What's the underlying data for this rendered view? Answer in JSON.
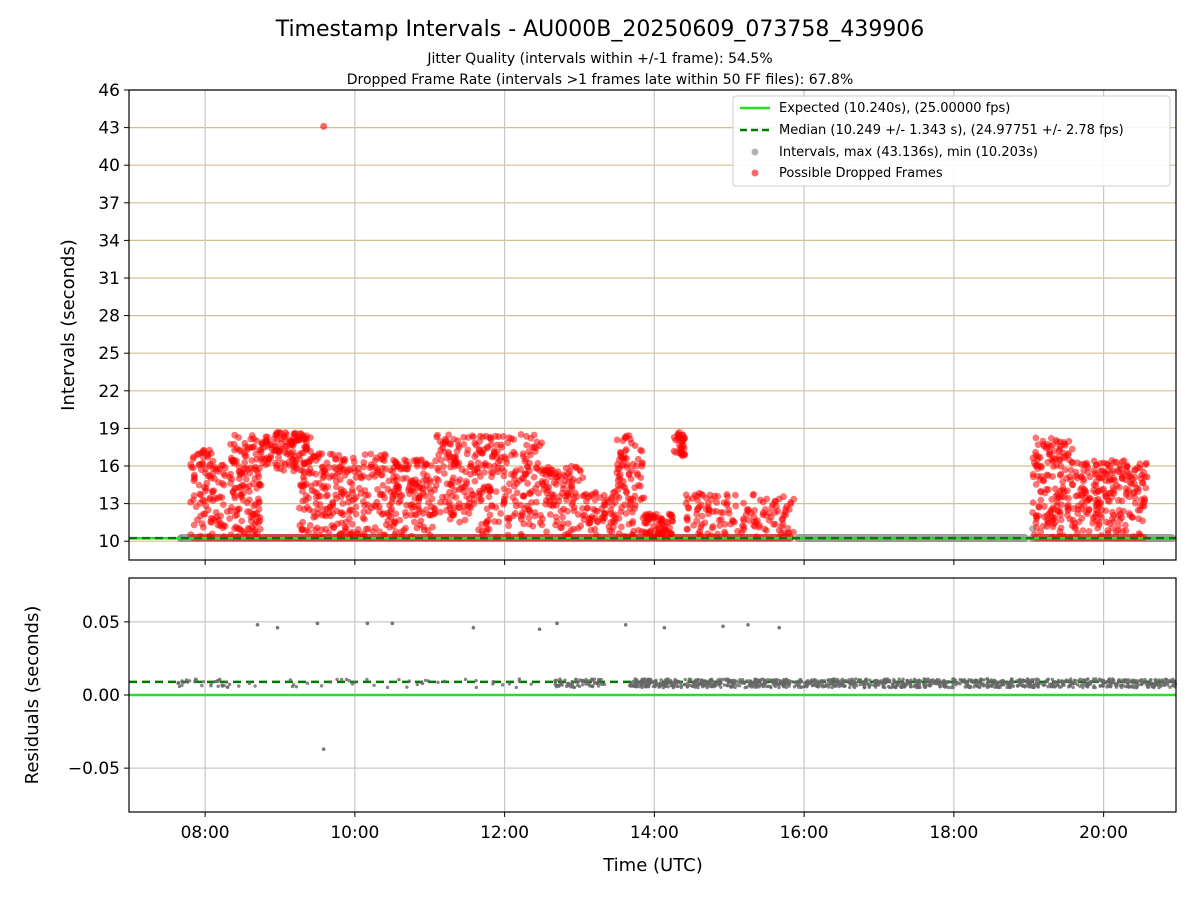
{
  "figure": {
    "title": "Timestamp Intervals - AU000B_20250609_073758_439906",
    "subtitle_1": "Jitter Quality (intervals within +/-1 frame): 54.5%",
    "subtitle_2": "Dropped Frame Rate (intervals >1 frames late within 50 FF files): 67.8%"
  },
  "chart_data": [
    {
      "type": "scatter",
      "panel": "intervals",
      "ylabel": "Intervals (seconds)",
      "xlabel": "",
      "xlim": [
        "06:59",
        "20:58"
      ],
      "ylim": [
        8.5,
        46
      ],
      "x_ticks": [
        "08:00",
        "10:00",
        "12:00",
        "14:00",
        "16:00",
        "18:00",
        "20:00"
      ],
      "y_ticks": [
        "10",
        "13",
        "16",
        "19",
        "22",
        "25",
        "28",
        "31",
        "34",
        "37",
        "40",
        "43",
        "46"
      ],
      "grid": "horizontal gold lines at y ticks, vertical gray lines at x ticks",
      "legend_position": "top-right",
      "expected_line": {
        "value": 10.24,
        "color": "#22e022",
        "legend": "Expected (10.240s), (25.00000 fps)"
      },
      "median_line": {
        "value": 10.249,
        "color": "#007a00",
        "style": "dashed",
        "legend": "Median (10.249 +/- 1.343 s), (24.97751 +/- 2.78 fps)"
      },
      "series": [
        {
          "legend": "Intervals, max (43.136s), min (10.203s)",
          "color": "#808080",
          "max": 43.136,
          "min": 10.203,
          "baseline_spans": [
            [
              "07:38",
              "15:52"
            ],
            [
              "15:52",
              "19:00"
            ],
            [
              "19:00",
              "20:58"
            ]
          ],
          "points": [
            [
              "19:03",
              11.0
            ],
            [
              "07:40",
              10.22
            ],
            [
              "15:40",
              10.3
            ]
          ]
        },
        {
          "legend": "Possible Dropped Frames",
          "color": "#ff0000",
          "points": [
            [
              "09:35",
              43.1
            ]
          ],
          "clusters": [
            {
              "start": "07:48",
              "end": "08:15",
              "low": 10.3,
              "high": 17.5,
              "count": 100
            },
            {
              "start": "08:15",
              "end": "08:45",
              "low": 10.3,
              "high": 18.5,
              "count": 140
            },
            {
              "start": "08:45",
              "end": "09:25",
              "low": 15.5,
              "high": 18.7,
              "count": 130
            },
            {
              "start": "09:15",
              "end": "10:25",
              "low": 10.3,
              "high": 17.0,
              "count": 240
            },
            {
              "start": "10:25",
              "end": "11:05",
              "low": 10.3,
              "high": 16.5,
              "count": 150
            },
            {
              "start": "11:05",
              "end": "11:35",
              "low": 11.5,
              "high": 18.5,
              "count": 110
            },
            {
              "start": "11:35",
              "end": "12:30",
              "low": 10.3,
              "high": 18.6,
              "count": 200
            },
            {
              "start": "12:30",
              "end": "13:05",
              "low": 10.3,
              "high": 16.0,
              "count": 110
            },
            {
              "start": "13:05",
              "end": "13:30",
              "low": 10.3,
              "high": 14.0,
              "count": 60
            },
            {
              "start": "13:30",
              "end": "13:52",
              "low": 10.3,
              "high": 18.5,
              "count": 90
            },
            {
              "start": "13:52",
              "end": "14:15",
              "low": 10.3,
              "high": 12.2,
              "count": 70
            },
            {
              "start": "14:15",
              "end": "14:25",
              "low": 16.8,
              "high": 18.8,
              "count": 35
            },
            {
              "start": "14:25",
              "end": "14:40",
              "low": 10.3,
              "high": 14.0,
              "count": 30
            },
            {
              "start": "14:40",
              "end": "15:52",
              "low": 10.3,
              "high": 13.8,
              "count": 110
            },
            {
              "start": "19:03",
              "end": "19:35",
              "low": 10.3,
              "high": 18.3,
              "count": 150
            },
            {
              "start": "19:35",
              "end": "20:35",
              "low": 10.3,
              "high": 16.5,
              "count": 220
            }
          ],
          "baseline_spans": [
            [
              "07:48",
              "15:52"
            ],
            [
              "19:03",
              "20:35"
            ]
          ]
        }
      ]
    },
    {
      "type": "scatter",
      "panel": "residuals",
      "ylabel": "Residuals (seconds)",
      "xlabel": "Time (UTC)",
      "xlim": [
        "06:59",
        "20:58"
      ],
      "ylim": [
        -0.08,
        0.08
      ],
      "x_ticks": [
        "08:00",
        "10:00",
        "12:00",
        "14:00",
        "16:00",
        "18:00",
        "20:00"
      ],
      "y_ticks": [
        "−0.05",
        "0.00",
        "0.05"
      ],
      "grid": "both",
      "zero_line": {
        "value": 0.0,
        "color": "#22e022"
      },
      "median_line": {
        "value": 0.009,
        "color": "#007a00",
        "style": "dashed"
      },
      "series": [
        {
          "color": "#666666",
          "points": [
            [
              "08:42",
              0.048
            ],
            [
              "08:58",
              0.046
            ],
            [
              "09:30",
              0.049
            ],
            [
              "10:10",
              0.049
            ],
            [
              "10:30",
              0.049
            ],
            [
              "11:35",
              0.046
            ],
            [
              "12:28",
              0.045
            ],
            [
              "12:42",
              0.049
            ],
            [
              "13:37",
              0.048
            ],
            [
              "14:08",
              0.046
            ],
            [
              "14:55",
              0.047
            ],
            [
              "15:15",
              0.048
            ],
            [
              "15:40",
              0.046
            ],
            [
              "09:35",
              -0.037
            ]
          ],
          "dense_band": {
            "low": 0.005,
            "high": 0.011,
            "spans": [
              [
                "07:38",
                "08:20",
                30
              ],
              [
                "08:20",
                "12:30",
                40
              ],
              [
                "12:40",
                "13:20",
                70
              ],
              [
                "13:40",
                "14:20",
                120
              ],
              [
                "14:20",
                "19:00",
                700
              ],
              [
                "19:00",
                "20:58",
                260
              ]
            ]
          }
        }
      ]
    }
  ]
}
